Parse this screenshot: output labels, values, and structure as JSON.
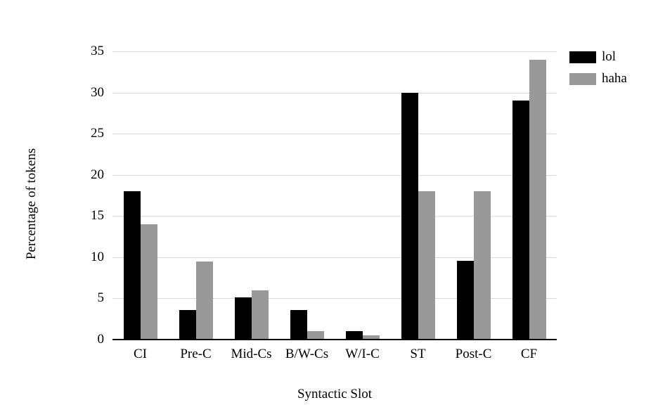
{
  "figure": {
    "background": "#ffffff"
  },
  "chart_data": {
    "type": "bar",
    "title": "",
    "xlabel": "Syntactic Slot",
    "ylabel": "Percentage of tokens",
    "categories": [
      "CI",
      "Pre-C",
      "Mid-Cs",
      "B/W-Cs",
      "W/I-C",
      "ST",
      "Post-C",
      "CF"
    ],
    "series": [
      {
        "name": "lol",
        "color": "#000000",
        "values": [
          18,
          3.6,
          5.1,
          3.6,
          1,
          30,
          9.6,
          29
        ]
      },
      {
        "name": "haha",
        "color": "#999999",
        "values": [
          14,
          9.5,
          6,
          1,
          0.5,
          18,
          18,
          34
        ]
      }
    ],
    "ylim": [
      0,
      35
    ],
    "yticks": [
      0,
      5,
      10,
      15,
      20,
      25,
      30,
      35
    ],
    "grid": true,
    "gridline_color": "#d9d9d9",
    "axis_color": "#000000",
    "legend_position": "top-right"
  }
}
